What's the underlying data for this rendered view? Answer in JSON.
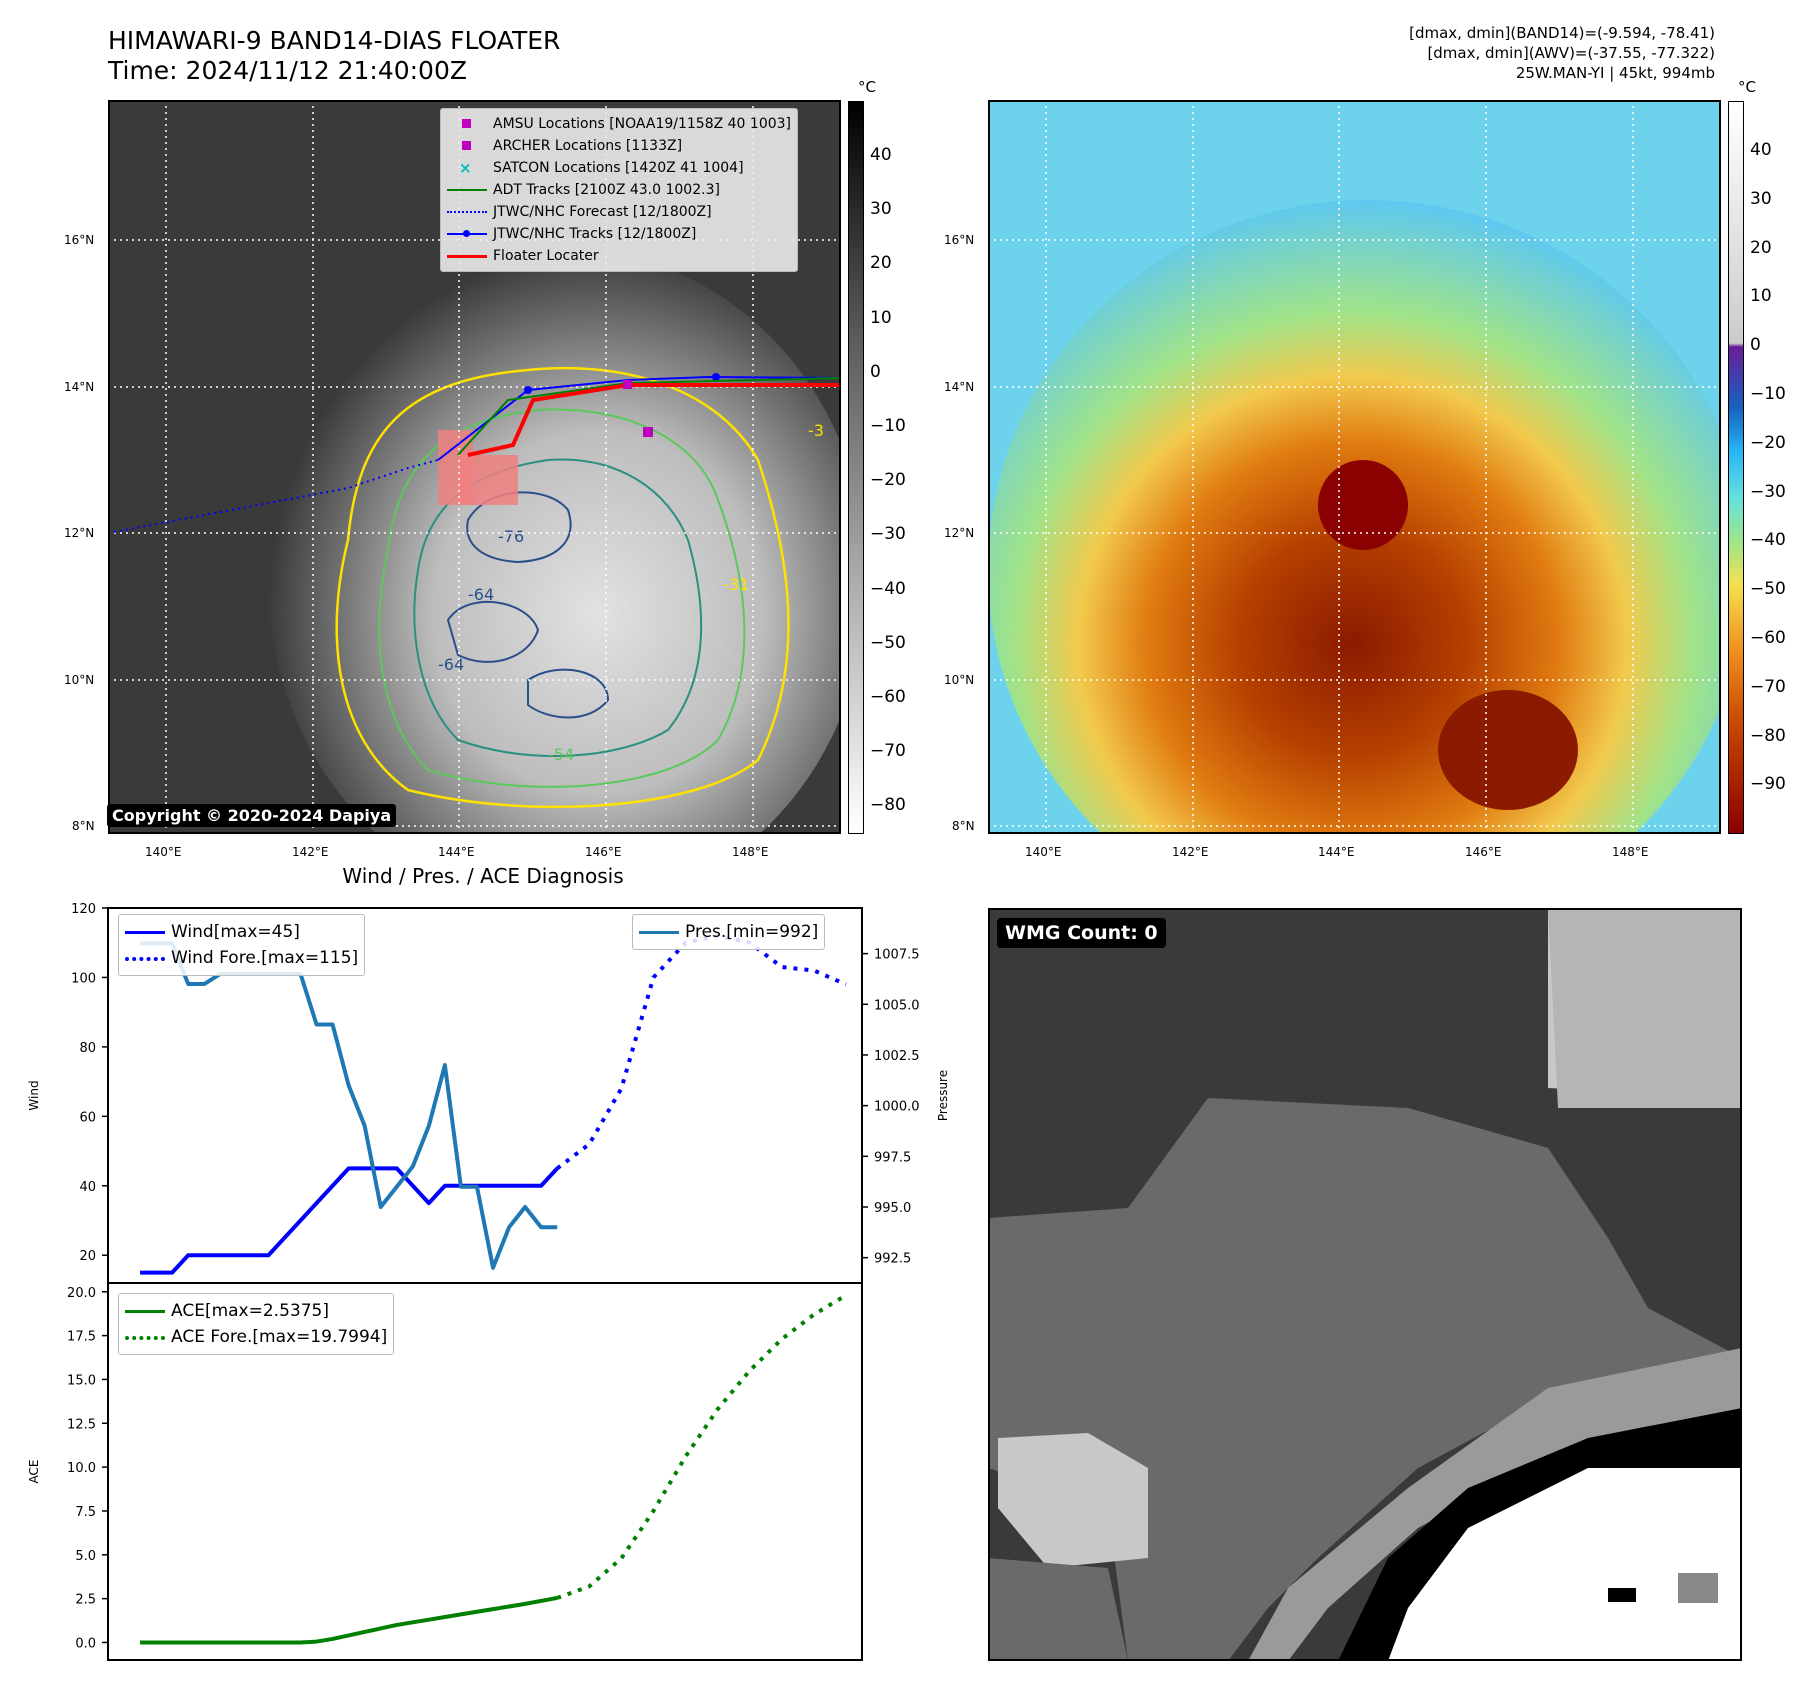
{
  "header": {
    "title_line1": "HIMAWARI-9 BAND14-DIAS FLOATER",
    "title_line2": "Time: 2024/11/12 21:40:00Z",
    "info_line1": "[dmax, dmin](BAND14)=(-9.594, -78.41)",
    "info_line2": "[dmax, dmin](AWV)=(-37.55, -77.322)",
    "info_line3": "25W.MAN-YI | 45kt, 994mb"
  },
  "map": {
    "lat_labels": [
      "16°N",
      "14°N",
      "12°N",
      "10°N",
      "8°N"
    ],
    "lon_labels": [
      "140°E",
      "142°E",
      "144°E",
      "146°E",
      "148°E"
    ],
    "copyright": "Copyright © 2020-2024 Dapiya",
    "contour_labels": [
      "-76",
      "-31",
      "-64",
      "-54",
      "-64",
      "-3"
    ],
    "legend": [
      {
        "label": "AMSU Locations [NOAA19/1158Z 40 1003]",
        "symbol": "square",
        "color": "#bf00bf"
      },
      {
        "label": "ARCHER Locations [1133Z]",
        "symbol": "square",
        "color": "#bf00bf"
      },
      {
        "label": "SATCON Locations [1420Z 41 1004]",
        "symbol": "x",
        "color": "#00bfbf"
      },
      {
        "label": "ADT Tracks [2100Z 43.0 1002.3]",
        "symbol": "line",
        "color": "#008000"
      },
      {
        "label": "JTWC/NHC Forecast [12/1800Z]",
        "symbol": "dotted",
        "color": "#0000ff"
      },
      {
        "label": "JTWC/NHC Tracks [12/1800Z]",
        "symbol": "line-dot",
        "color": "#0000ff"
      },
      {
        "label": "Floater Locater",
        "symbol": "line",
        "color": "#ff0000"
      }
    ]
  },
  "colorbar_gray": {
    "unit": "°C",
    "ticks": [
      "40",
      "30",
      "20",
      "10",
      "0",
      "−10",
      "−20",
      "−30",
      "−40",
      "−50",
      "−60",
      "−70",
      "−80"
    ]
  },
  "colorbar_color": {
    "unit": "°C",
    "ticks": [
      "40",
      "30",
      "20",
      "10",
      "0",
      "−10",
      "−20",
      "−30",
      "−40",
      "−50",
      "−60",
      "−70",
      "−80",
      "−90"
    ]
  },
  "wmg": {
    "label": "WMG Count: 0"
  },
  "colors": {
    "wind": "#0000ff",
    "pressure": "#1f77b4",
    "ace": "#008000",
    "contour_yellow": "#ffe100",
    "contour_green": "#5cc85c",
    "contour_teal": "#2a9080",
    "contour_blue": "#2a4f8a"
  },
  "chart_data": [
    {
      "type": "line",
      "title": "Wind / Pres. / ACE Diagnosis",
      "ylabel": "Wind",
      "ylabel_right": "Pressure",
      "ylim": [
        12,
        120
      ],
      "yticks": [
        "120",
        "100",
        "80",
        "60",
        "40",
        "20"
      ],
      "ylim_right": [
        991.25,
        1009.75
      ],
      "yticks_right": [
        "1007.5",
        "1005.0",
        "1002.5",
        "1000.0",
        "997.5",
        "995.0",
        "992.5"
      ],
      "xlim": [
        0,
        47
      ],
      "series": [
        {
          "name": "Wind[max=45]",
          "style": "solid",
          "axis": "left",
          "x": [
            2,
            3,
            4,
            5,
            6,
            7,
            8,
            9,
            10,
            11,
            12,
            13,
            14,
            15,
            16,
            17,
            18,
            19,
            20,
            21,
            22,
            23,
            24,
            25,
            26,
            27,
            28
          ],
          "values": [
            15,
            15,
            15,
            20,
            20,
            20,
            20,
            20,
            20,
            25,
            30,
            35,
            40,
            45,
            45,
            45,
            45,
            40,
            35,
            40,
            40,
            40,
            40,
            40,
            40,
            40,
            45
          ]
        },
        {
          "name": "Wind Fore.[max=115]",
          "style": "dotted",
          "axis": "left",
          "x": [
            28,
            30,
            32,
            34,
            36,
            38,
            40,
            42,
            44,
            46
          ],
          "values": [
            45,
            52,
            68,
            100,
            110,
            112,
            110,
            103,
            102,
            98
          ]
        },
        {
          "name": "Pres.[min=992]",
          "style": "solid",
          "axis": "right",
          "x": [
            2,
            3,
            4,
            5,
            6,
            7,
            8,
            9,
            10,
            11,
            12,
            13,
            14,
            15,
            16,
            17,
            18,
            19,
            20,
            21,
            22,
            23,
            24,
            25,
            26,
            27,
            28
          ],
          "values": [
            1008,
            1008,
            1008,
            1006,
            1006,
            1006.5,
            1006.5,
            1006.5,
            1006.5,
            1006.5,
            1006.5,
            1004,
            1004,
            1001,
            999,
            995,
            996,
            997,
            999,
            1002,
            996,
            996,
            992,
            994,
            995,
            994,
            994
          ]
        }
      ],
      "legend": [
        "Wind[max=45]",
        "Wind Fore.[max=115]",
        "Pres.[min=992]"
      ]
    },
    {
      "type": "line",
      "ylabel": "ACE",
      "ylim": [
        -1,
        20.5
      ],
      "yticks": [
        "20.0",
        "17.5",
        "15.0",
        "12.5",
        "10.0",
        "7.5",
        "5.0",
        "2.5",
        "0.0"
      ],
      "xlim": [
        0,
        47
      ],
      "series": [
        {
          "name": "ACE[max=2.5375]",
          "style": "solid",
          "x": [
            2,
            4,
            6,
            8,
            10,
            12,
            13,
            14,
            16,
            18,
            20,
            22,
            24,
            26,
            28
          ],
          "values": [
            0,
            0,
            0,
            0,
            0,
            0,
            0.05,
            0.2,
            0.6,
            1.0,
            1.3,
            1.6,
            1.9,
            2.2,
            2.54
          ]
        },
        {
          "name": "ACE Fore.[max=19.7994]",
          "style": "dotted",
          "x": [
            28,
            30,
            32,
            34,
            36,
            38,
            40,
            42,
            44,
            46
          ],
          "values": [
            2.54,
            3.2,
            4.8,
            7.5,
            10.6,
            13.3,
            15.5,
            17.3,
            18.7,
            19.8
          ]
        }
      ],
      "legend": [
        "ACE[max=2.5375]",
        "ACE Fore.[max=19.7994]"
      ]
    }
  ]
}
